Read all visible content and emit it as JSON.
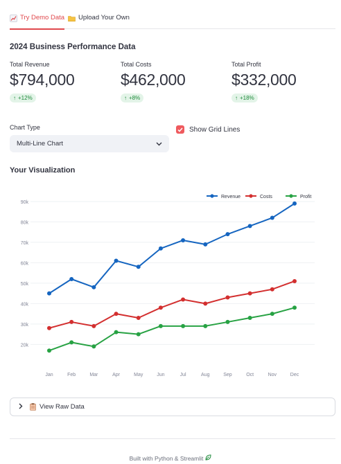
{
  "tabs": [
    {
      "label": "Try Demo Data",
      "icon": "chart-increasing-icon",
      "active": true
    },
    {
      "label": "Upload Your Own",
      "icon": "folder-icon",
      "active": false
    }
  ],
  "section_title": "2024 Business Performance Data",
  "metrics": [
    {
      "label": "Total Revenue",
      "value": "$794,000",
      "delta": "+12%"
    },
    {
      "label": "Total Costs",
      "value": "$462,000",
      "delta": "+8%"
    },
    {
      "label": "Total Profit",
      "value": "$332,000",
      "delta": "+18%"
    }
  ],
  "chart_type": {
    "label": "Chart Type",
    "selected": "Multi-Line Chart"
  },
  "grid_toggle": {
    "label": "Show Grid Lines",
    "checked": true
  },
  "viz_title": "Your Visualization",
  "expander": {
    "label": "View Raw Data"
  },
  "footer": {
    "text": "Built with Python & Streamlit"
  },
  "colors": {
    "accent": "#e0484c",
    "revenue": "#1565c0",
    "costs": "#d32f2f",
    "profit": "#27a243"
  },
  "chart_data": {
    "type": "line",
    "categories": [
      "Jan",
      "Feb",
      "Mar",
      "Apr",
      "May",
      "Jun",
      "Jul",
      "Aug",
      "Sep",
      "Oct",
      "Nov",
      "Dec"
    ],
    "series": [
      {
        "name": "Revenue",
        "color": "#1565c0",
        "values": [
          45000,
          52000,
          48000,
          61000,
          58000,
          67000,
          71000,
          69000,
          74000,
          78000,
          82000,
          89000
        ]
      },
      {
        "name": "Costs",
        "color": "#d32f2f",
        "values": [
          28000,
          31000,
          29000,
          35000,
          33000,
          38000,
          42000,
          40000,
          43000,
          45000,
          47000,
          51000
        ]
      },
      {
        "name": "Profit",
        "color": "#27a243",
        "values": [
          17000,
          21000,
          19000,
          26000,
          25000,
          29000,
          29000,
          29000,
          31000,
          33000,
          35000,
          38000
        ]
      }
    ],
    "y_ticks": [
      20000,
      30000,
      40000,
      50000,
      60000,
      70000,
      80000,
      90000
    ],
    "y_tick_labels": [
      "20k",
      "30k",
      "40k",
      "50k",
      "60k",
      "70k",
      "80k",
      "90k"
    ],
    "ylim": [
      13000,
      91000
    ],
    "grid": true,
    "legend_position": "top-right",
    "title": "",
    "xlabel": "",
    "ylabel": ""
  }
}
